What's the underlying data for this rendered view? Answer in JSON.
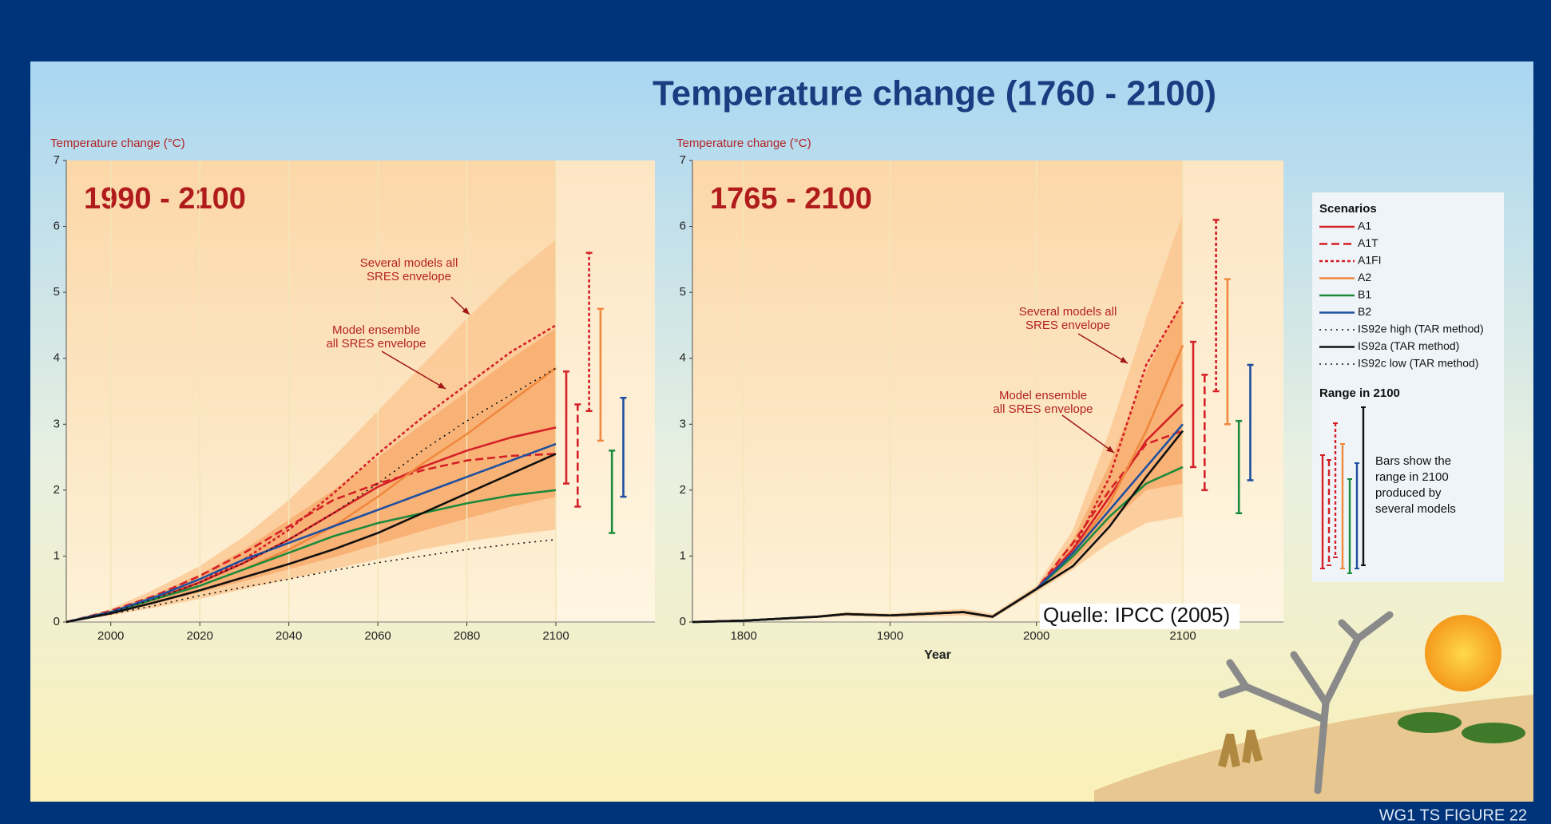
{
  "title": "Temperature change (1760 - 2100)",
  "source": "Quelle: IPCC (2005)",
  "footer": "WG1 TS FIGURE 22",
  "legend": {
    "heading": "Scenarios",
    "range_heading": "Range in 2100",
    "range_note": [
      "Bars show the",
      "range in 2100",
      "produced by",
      "several models"
    ]
  },
  "chart_data": [
    {
      "type": "line",
      "panel_label": "1990 - 2100",
      "ylabel": "Temperature change (°C)",
      "x": [
        1990,
        2000,
        2010,
        2020,
        2030,
        2040,
        2050,
        2060,
        2070,
        2080,
        2090,
        2100
      ],
      "xlim": [
        1990,
        2100
      ],
      "xticks": [
        2000,
        2020,
        2040,
        2060,
        2080,
        2100
      ],
      "ylim": [
        0,
        7
      ],
      "yticks": [
        0,
        1,
        2,
        3,
        4,
        5,
        6,
        7
      ],
      "annotations": [
        [
          "Several models all",
          "SRES envelope"
        ],
        [
          "Model ensemble",
          "all SRES envelope"
        ]
      ],
      "envelopes": [
        {
          "color": "#fbc48e",
          "upper": [
            0,
            0.2,
            0.5,
            0.85,
            1.3,
            1.85,
            2.5,
            3.2,
            3.9,
            4.6,
            5.25,
            5.8
          ],
          "lower": [
            0,
            0.1,
            0.22,
            0.35,
            0.5,
            0.65,
            0.8,
            0.95,
            1.1,
            1.22,
            1.32,
            1.4
          ]
        },
        {
          "color": "#f8a868",
          "upper": [
            0,
            0.18,
            0.42,
            0.72,
            1.1,
            1.55,
            2.0,
            2.5,
            3.0,
            3.5,
            4.0,
            4.45
          ],
          "lower": [
            0,
            0.12,
            0.28,
            0.45,
            0.62,
            0.8,
            0.98,
            1.18,
            1.38,
            1.57,
            1.75,
            1.9
          ]
        }
      ],
      "series": [
        {
          "name": "A1",
          "color": "#d42027",
          "dash": "solid",
          "values": [
            0,
            0.15,
            0.35,
            0.6,
            0.9,
            1.25,
            1.65,
            2.05,
            2.35,
            2.6,
            2.8,
            2.95
          ],
          "range": [
            2.1,
            3.8
          ]
        },
        {
          "name": "A1T",
          "color": "#d42027",
          "dash": "dashed",
          "values": [
            0,
            0.17,
            0.4,
            0.7,
            1.05,
            1.45,
            1.85,
            2.1,
            2.3,
            2.45,
            2.52,
            2.55
          ],
          "range": [
            1.75,
            3.3
          ]
        },
        {
          "name": "A1FI",
          "color": "#d42027",
          "dash": "dotted",
          "values": [
            0,
            0.15,
            0.35,
            0.6,
            0.95,
            1.4,
            1.95,
            2.55,
            3.1,
            3.6,
            4.1,
            4.5
          ],
          "range": [
            3.2,
            5.6
          ]
        },
        {
          "name": "A2",
          "color": "#f0883e",
          "dash": "solid",
          "values": [
            0,
            0.15,
            0.35,
            0.55,
            0.8,
            1.1,
            1.45,
            1.9,
            2.4,
            2.85,
            3.35,
            3.85
          ],
          "range": [
            2.75,
            4.75
          ]
        },
        {
          "name": "B1",
          "color": "#1c8a3c",
          "dash": "solid",
          "values": [
            0,
            0.15,
            0.35,
            0.55,
            0.8,
            1.05,
            1.3,
            1.5,
            1.65,
            1.8,
            1.92,
            2.0
          ],
          "range": [
            1.35,
            2.6
          ]
        },
        {
          "name": "B2",
          "color": "#1f4f9f",
          "dash": "solid",
          "values": [
            0,
            0.15,
            0.38,
            0.65,
            0.95,
            1.2,
            1.45,
            1.7,
            1.95,
            2.2,
            2.45,
            2.7
          ],
          "range": [
            1.9,
            3.4
          ]
        },
        {
          "name": "IS92e high (TAR method)",
          "color": "#111111",
          "dash": "dots",
          "values": [
            0,
            0.15,
            0.35,
            0.6,
            0.9,
            1.25,
            1.65,
            2.1,
            2.6,
            3.05,
            3.45,
            3.85
          ]
        },
        {
          "name": "IS92a (TAR method)",
          "color": "#111111",
          "dash": "solid",
          "values": [
            0,
            0.13,
            0.3,
            0.48,
            0.68,
            0.88,
            1.1,
            1.35,
            1.65,
            1.95,
            2.25,
            2.55
          ]
        },
        {
          "name": "IS92c low (TAR method)",
          "color": "#111111",
          "dash": "dots",
          "values": [
            0,
            0.12,
            0.25,
            0.4,
            0.53,
            0.65,
            0.78,
            0.9,
            1.0,
            1.1,
            1.18,
            1.25
          ]
        }
      ]
    },
    {
      "type": "line",
      "panel_label": "1765 - 2100",
      "ylabel": "Temperature change (°C)",
      "xlabel": "Year",
      "x": [
        1765,
        1800,
        1850,
        1870,
        1900,
        1950,
        1970,
        2000,
        2025,
        2050,
        2075,
        2100
      ],
      "xlim": [
        1765,
        2100
      ],
      "xticks": [
        1800,
        1900,
        2000,
        2100
      ],
      "ylim": [
        0,
        7
      ],
      "yticks": [
        0,
        1,
        2,
        3,
        4,
        5,
        6,
        7
      ],
      "annotations": [
        [
          "Several models all",
          "SRES envelope"
        ],
        [
          "Model ensemble",
          "all SRES envelope"
        ]
      ],
      "envelopes": [
        {
          "color": "#fbc48e",
          "upper": [
            0,
            0.03,
            0.1,
            0.15,
            0.13,
            0.2,
            0.12,
            0.55,
            1.4,
            2.9,
            4.6,
            6.2
          ],
          "lower": [
            0,
            0.01,
            0.06,
            0.09,
            0.07,
            0.1,
            0.05,
            0.45,
            0.8,
            1.2,
            1.5,
            1.6
          ]
        },
        {
          "color": "#f8a868",
          "upper": [
            0,
            0.02,
            0.09,
            0.13,
            0.11,
            0.17,
            0.1,
            0.52,
            1.25,
            2.4,
            3.8,
            4.9
          ],
          "lower": [
            0,
            0.02,
            0.07,
            0.11,
            0.09,
            0.13,
            0.07,
            0.48,
            0.9,
            1.5,
            2.0,
            2.1
          ]
        }
      ],
      "series": [
        {
          "name": "A1",
          "color": "#d42027",
          "dash": "solid",
          "values": [
            0,
            0.02,
            0.08,
            0.12,
            0.1,
            0.15,
            0.08,
            0.5,
            1.1,
            1.9,
            2.75,
            3.3
          ],
          "range": [
            2.35,
            4.25
          ]
        },
        {
          "name": "A1T",
          "color": "#d42027",
          "dash": "dashed",
          "values": [
            0,
            0.02,
            0.08,
            0.12,
            0.1,
            0.15,
            0.08,
            0.5,
            1.2,
            2.0,
            2.7,
            2.9
          ],
          "range": [
            2.0,
            3.75
          ]
        },
        {
          "name": "A1FI",
          "color": "#d42027",
          "dash": "dotted",
          "values": [
            0,
            0.02,
            0.08,
            0.12,
            0.1,
            0.15,
            0.08,
            0.5,
            1.1,
            2.2,
            3.9,
            4.85
          ],
          "range": [
            3.5,
            6.1
          ]
        },
        {
          "name": "A2",
          "color": "#f0883e",
          "dash": "solid",
          "values": [
            0,
            0.02,
            0.08,
            0.12,
            0.1,
            0.15,
            0.08,
            0.5,
            1.05,
            1.8,
            2.9,
            4.2
          ],
          "range": [
            3.0,
            5.2
          ]
        },
        {
          "name": "B1",
          "color": "#1c8a3c",
          "dash": "solid",
          "values": [
            0,
            0.02,
            0.08,
            0.12,
            0.1,
            0.15,
            0.08,
            0.5,
            1.0,
            1.6,
            2.1,
            2.35
          ],
          "range": [
            1.65,
            3.05
          ]
        },
        {
          "name": "B2",
          "color": "#1f4f9f",
          "dash": "solid",
          "values": [
            0,
            0.02,
            0.08,
            0.12,
            0.1,
            0.15,
            0.08,
            0.5,
            1.05,
            1.7,
            2.35,
            3.0
          ],
          "range": [
            2.15,
            3.9
          ]
        },
        {
          "name": "IS92a (TAR method)",
          "color": "#111111",
          "dash": "solid",
          "values": [
            0,
            0.02,
            0.08,
            0.12,
            0.1,
            0.15,
            0.08,
            0.5,
            0.85,
            1.45,
            2.2,
            2.9
          ]
        }
      ]
    }
  ]
}
